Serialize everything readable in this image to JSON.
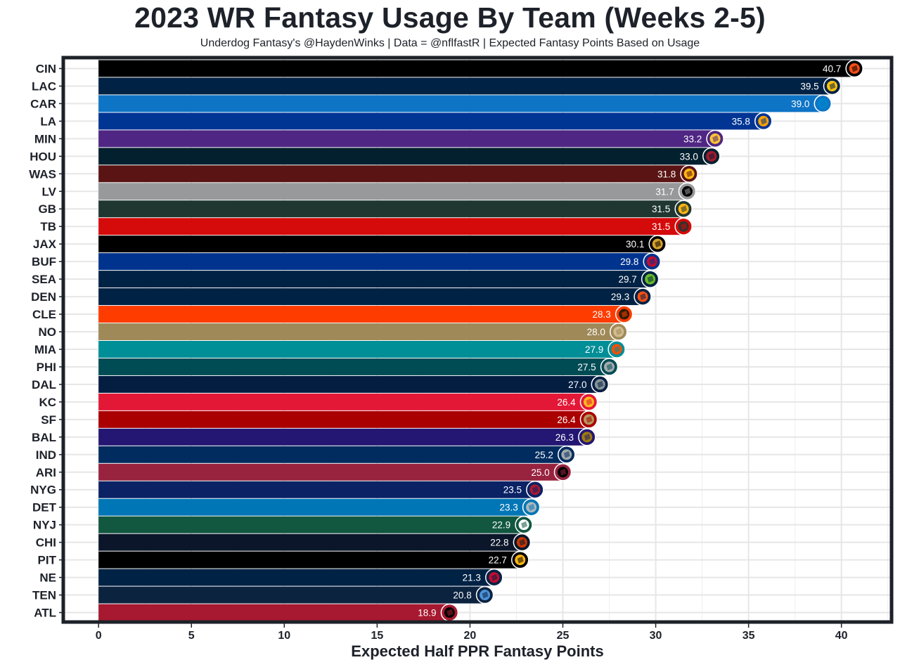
{
  "header": {
    "title": "2023 WR Fantasy Usage By Team (Weeks 2-5)",
    "subtitle": "Underdog Fantasy's @HaydenWinks | Data = @nflfastR | Expected Fantasy Points Based on Usage"
  },
  "chart_data": {
    "type": "bar",
    "orientation": "horizontal",
    "title": "2023 WR Fantasy Usage By Team (Weeks 2-5)",
    "subtitle": "Underdog Fantasy's @HaydenWinks | Data = @nflfastR | Expected Fantasy Points Based on Usage",
    "xlabel": "Expected Half PPR Fantasy Points",
    "ylabel": "",
    "xlim": [
      -1.9,
      42.7
    ],
    "xticks": [
      0,
      5,
      10,
      15,
      20,
      25,
      30,
      35,
      40
    ],
    "grid": true,
    "legend": "none",
    "categories": [
      "CIN",
      "LAC",
      "CAR",
      "LA",
      "MIN",
      "HOU",
      "WAS",
      "LV",
      "GB",
      "TB",
      "JAX",
      "BUF",
      "SEA",
      "DEN",
      "CLE",
      "NO",
      "MIA",
      "PHI",
      "DAL",
      "KC",
      "SF",
      "BAL",
      "IND",
      "ARI",
      "NYG",
      "DET",
      "NYJ",
      "CHI",
      "PIT",
      "NE",
      "TEN",
      "ATL"
    ],
    "values": [
      40.7,
      39.5,
      39.0,
      35.8,
      33.2,
      33.0,
      31.8,
      31.7,
      31.5,
      31.5,
      30.1,
      29.8,
      29.7,
      29.3,
      28.3,
      28.0,
      27.9,
      27.5,
      27.0,
      26.4,
      26.4,
      26.3,
      25.2,
      25.0,
      23.5,
      23.3,
      22.9,
      22.8,
      22.7,
      21.3,
      20.8,
      18.9
    ],
    "value_labels": [
      "40.7",
      "39.5",
      "39.0",
      "35.8",
      "33.2",
      "33.0",
      "31.8",
      "31.7",
      "31.5",
      "31.5",
      "30.1",
      "29.8",
      "29.7",
      "29.3",
      "28.3",
      "28.0",
      "27.9",
      "27.5",
      "27.0",
      "26.4",
      "26.4",
      "26.3",
      "25.2",
      "25.0",
      "23.5",
      "23.3",
      "22.9",
      "22.8",
      "22.7",
      "21.3",
      "20.8",
      "18.9"
    ],
    "bar_colors": [
      "#000000",
      "#002244",
      "#0e74c6",
      "#003594",
      "#4f2683",
      "#03202f",
      "#5a1414",
      "#97999b",
      "#203731",
      "#d50a0a",
      "#000000",
      "#00338d",
      "#002244",
      "#002244",
      "#ff3c00",
      "#9f8958",
      "#008e97",
      "#004c54",
      "#041e42",
      "#e31837",
      "#aa0000",
      "#241773",
      "#002c5f",
      "#97233f",
      "#0b2265",
      "#0076b6",
      "#125740",
      "#0b162a",
      "#000000",
      "#002244",
      "#0c2340",
      "#a71930"
    ],
    "logo_colors": [
      "#fb4f14",
      "#ffc20e",
      "#0085ca",
      "#ffa300",
      "#ffc62f",
      "#a71930",
      "#ffb612",
      "#000000",
      "#ffb612",
      "#34302b",
      "#d7a22a",
      "#c60c30",
      "#69be28",
      "#fb4f14",
      "#311d00",
      "#d3bc8d",
      "#fc4c02",
      "#a5acaf",
      "#869397",
      "#ffb81c",
      "#b3995d",
      "#9e7c0c",
      "#a2aaad",
      "#000000",
      "#a71930",
      "#b0b7bc",
      "#ffffff",
      "#c83803",
      "#ffb612",
      "#c60c30",
      "#4b92db",
      "#000000"
    ],
    "logo_icons": [
      "bengals-logo",
      "chargers-logo",
      "panthers-logo",
      "rams-logo",
      "vikings-logo",
      "texans-logo",
      "commanders-logo",
      "raiders-logo",
      "packers-logo",
      "buccaneers-logo",
      "jaguars-logo",
      "bills-logo",
      "seahawks-logo",
      "broncos-logo",
      "browns-logo",
      "saints-logo",
      "dolphins-logo",
      "eagles-logo",
      "cowboys-logo",
      "chiefs-logo",
      "49ers-logo",
      "ravens-logo",
      "colts-logo",
      "cardinals-logo",
      "giants-logo",
      "lions-logo",
      "jets-logo",
      "bears-logo",
      "steelers-logo",
      "patriots-logo",
      "titans-logo",
      "falcons-logo"
    ]
  }
}
